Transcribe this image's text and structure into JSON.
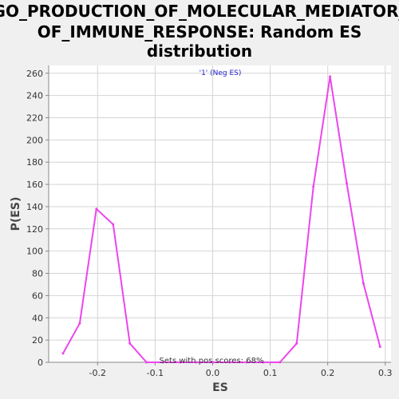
{
  "chart_data": {
    "type": "line",
    "title_lines": [
      "GO_PRODUCTION_OF_MOLECULAR_MEDIATOR_",
      "OF_IMMUNE_RESPONSE: Random ES",
      "distribution"
    ],
    "xlabel": "ES",
    "ylabel": "P(ES)",
    "xlim": [
      -0.285,
      0.31
    ],
    "ylim": [
      0,
      267
    ],
    "x_ticks": [
      -0.2,
      -0.1,
      0.0,
      0.1,
      0.2,
      0.3
    ],
    "x_tick_labels": [
      "-0.2",
      "-0.1",
      "0.0",
      "0.1",
      "0.2",
      "0.3"
    ],
    "y_ticks": [
      0,
      20,
      40,
      60,
      80,
      100,
      120,
      140,
      160,
      180,
      200,
      220,
      240,
      260
    ],
    "y_tick_labels": [
      "0",
      "20",
      "40",
      "60",
      "80",
      "100",
      "120",
      "140",
      "160",
      "180",
      "200",
      "220",
      "240",
      "260"
    ],
    "grid": true,
    "legend_position": "top-center",
    "series": [
      {
        "name": "'1' (Neg ES)",
        "color": "#ee44ee",
        "x": [
          -0.26,
          -0.231,
          -0.202,
          -0.173,
          -0.144,
          -0.115,
          -0.086,
          -0.057,
          -0.028,
          0.001,
          0.03,
          0.059,
          0.088,
          0.117,
          0.146,
          0.175,
          0.204,
          0.233,
          0.262,
          0.291
        ],
        "y": [
          8,
          35,
          138,
          124,
          17,
          0,
          0,
          0,
          0,
          0,
          0,
          0,
          0,
          0,
          17,
          158,
          257,
          161,
          71,
          14
        ]
      }
    ],
    "annotations": [
      "Sets with pos scores: 68%"
    ]
  },
  "colors": {
    "plot_background": "#ffffff",
    "grid": "#d4d4d4",
    "axis": "#888888",
    "line": "#ee44ee"
  }
}
